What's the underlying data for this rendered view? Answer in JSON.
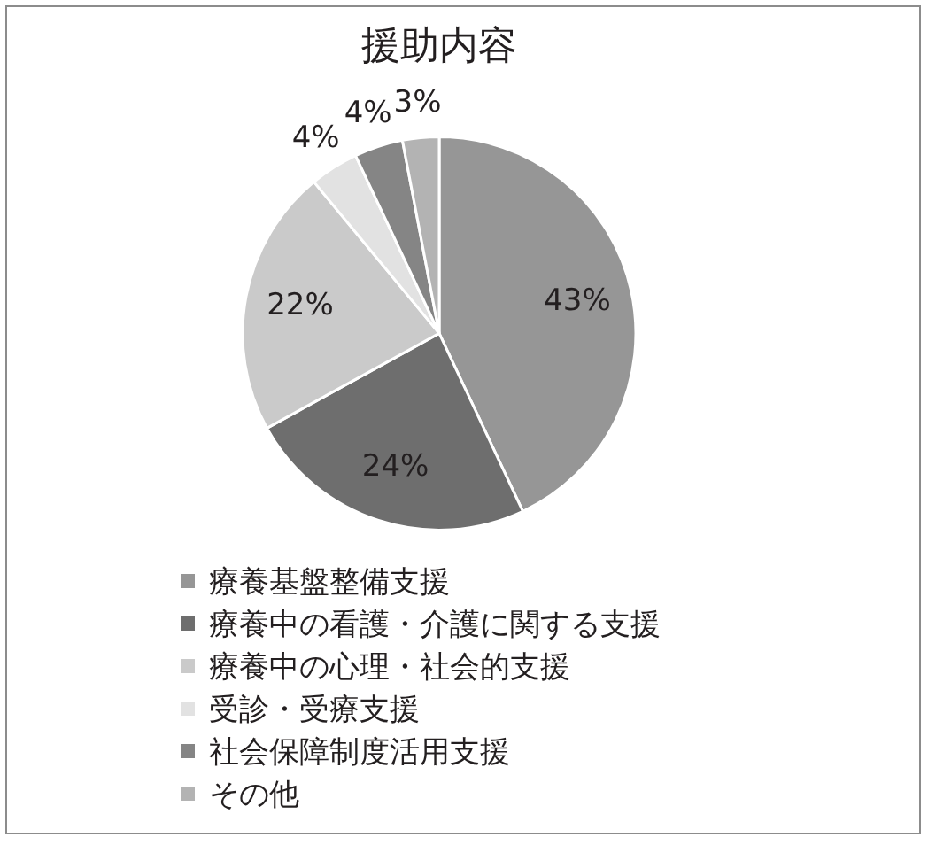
{
  "chart_data": {
    "type": "pie",
    "title": "援助内容",
    "categories": [
      "療養基盤整備支援",
      "療養中の看護・介護に関する支援",
      "療養中の心理・社会的支援",
      "受診・受療支援",
      "社会保障制度活用支援",
      "その他"
    ],
    "values": [
      43,
      24,
      22,
      4,
      4,
      3
    ],
    "value_labels": [
      "43%",
      "24%",
      "22%",
      "4%",
      "4%",
      "3%"
    ],
    "colors": [
      "#969696",
      "#6e6e6e",
      "#cacaca",
      "#e2e2e2",
      "#858585",
      "#b3b3b3"
    ],
    "legend": "bottom"
  }
}
